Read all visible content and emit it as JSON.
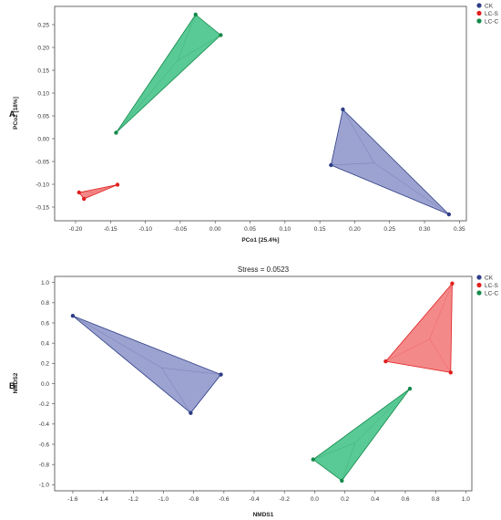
{
  "panel_labels": [
    "A",
    "B"
  ],
  "chart_data": [
    {
      "type": "scatter",
      "panel": "A",
      "title": "",
      "xlabel": "PCo1 [25.4%]",
      "ylabel": "PCo2 [18%]",
      "xlim": [
        -0.23,
        0.36
      ],
      "ylim": [
        -0.18,
        0.29
      ],
      "xticks": [
        -0.2,
        -0.15,
        -0.1,
        -0.05,
        0.0,
        0.05,
        0.1,
        0.15,
        0.2,
        0.25,
        0.3,
        0.35
      ],
      "xtick_labels": [
        "-0.20",
        "-0.15",
        "-0.10",
        "-0.05",
        "0.00",
        "0.05",
        "0.10",
        "0.15",
        "0.20",
        "0.25",
        "0.30",
        "0.35"
      ],
      "yticks": [
        -0.15,
        -0.1,
        -0.05,
        0.0,
        0.05,
        0.1,
        0.15,
        0.2,
        0.25
      ],
      "ytick_labels": [
        "-0.15",
        "-0.10",
        "-0.05",
        "0.00",
        "0.05",
        "0.10",
        "0.15",
        "0.20",
        "0.25"
      ],
      "grid": false,
      "legend_position": "outside-top-right",
      "series": [
        {
          "name": "CK",
          "color": "#2e3d87",
          "fill": "#8b93c8",
          "points": [
            [
              0.183,
              0.064
            ],
            [
              0.166,
              -0.058
            ],
            [
              0.335,
              -0.166
            ]
          ]
        },
        {
          "name": "LC-S",
          "color": "#e0201f",
          "fill": "#f27474",
          "points": [
            [
              -0.14,
              -0.101
            ],
            [
              -0.195,
              -0.118
            ],
            [
              -0.188,
              -0.132
            ]
          ]
        },
        {
          "name": "LC-C",
          "color": "#138a4a",
          "fill": "#3cbf82",
          "points": [
            [
              -0.028,
              0.272
            ],
            [
              0.008,
              0.227
            ],
            [
              -0.142,
              0.013
            ]
          ]
        }
      ]
    },
    {
      "type": "scatter",
      "panel": "B",
      "title": "Stress = 0.0523",
      "xlabel": "NMDS1",
      "ylabel": "NMDS2",
      "xlim": [
        -1.72,
        1.04
      ],
      "ylim": [
        -1.06,
        1.06
      ],
      "xticks": [
        -1.6,
        -1.4,
        -1.2,
        -1.0,
        -0.8,
        -0.6,
        -0.4,
        -0.2,
        0.0,
        0.2,
        0.4,
        0.6,
        0.8,
        1.0
      ],
      "xtick_labels": [
        "-1.6",
        "-1.4",
        "-1.2",
        "-1.0",
        "-0.8",
        "-0.6",
        "-0.4",
        "-0.2",
        "0.0",
        "0.2",
        "0.4",
        "0.6",
        "0.8",
        "1.0"
      ],
      "yticks": [
        -1.0,
        -0.8,
        -0.6,
        -0.4,
        -0.2,
        0.0,
        0.2,
        0.4,
        0.6,
        0.8,
        1.0
      ],
      "ytick_labels": [
        "-1.0",
        "-0.8",
        "-0.6",
        "-0.4",
        "-0.2",
        "0.0",
        "0.2",
        "0.4",
        "0.6",
        "0.8",
        "1.0"
      ],
      "grid": false,
      "legend_position": "outside-top-right",
      "series": [
        {
          "name": "CK",
          "color": "#2e3d87",
          "fill": "#8b93c8",
          "points": [
            [
              -1.6,
              0.67
            ],
            [
              -0.62,
              0.09
            ],
            [
              -0.82,
              -0.29
            ]
          ]
        },
        {
          "name": "LC-S",
          "color": "#e0201f",
          "fill": "#f27474",
          "points": [
            [
              0.91,
              0.99
            ],
            [
              0.47,
              0.22
            ],
            [
              0.9,
              0.11
            ]
          ]
        },
        {
          "name": "LC-C",
          "color": "#138a4a",
          "fill": "#3cbf82",
          "points": [
            [
              0.63,
              -0.05
            ],
            [
              -0.01,
              -0.75
            ],
            [
              0.18,
              -0.96
            ]
          ]
        }
      ]
    }
  ]
}
